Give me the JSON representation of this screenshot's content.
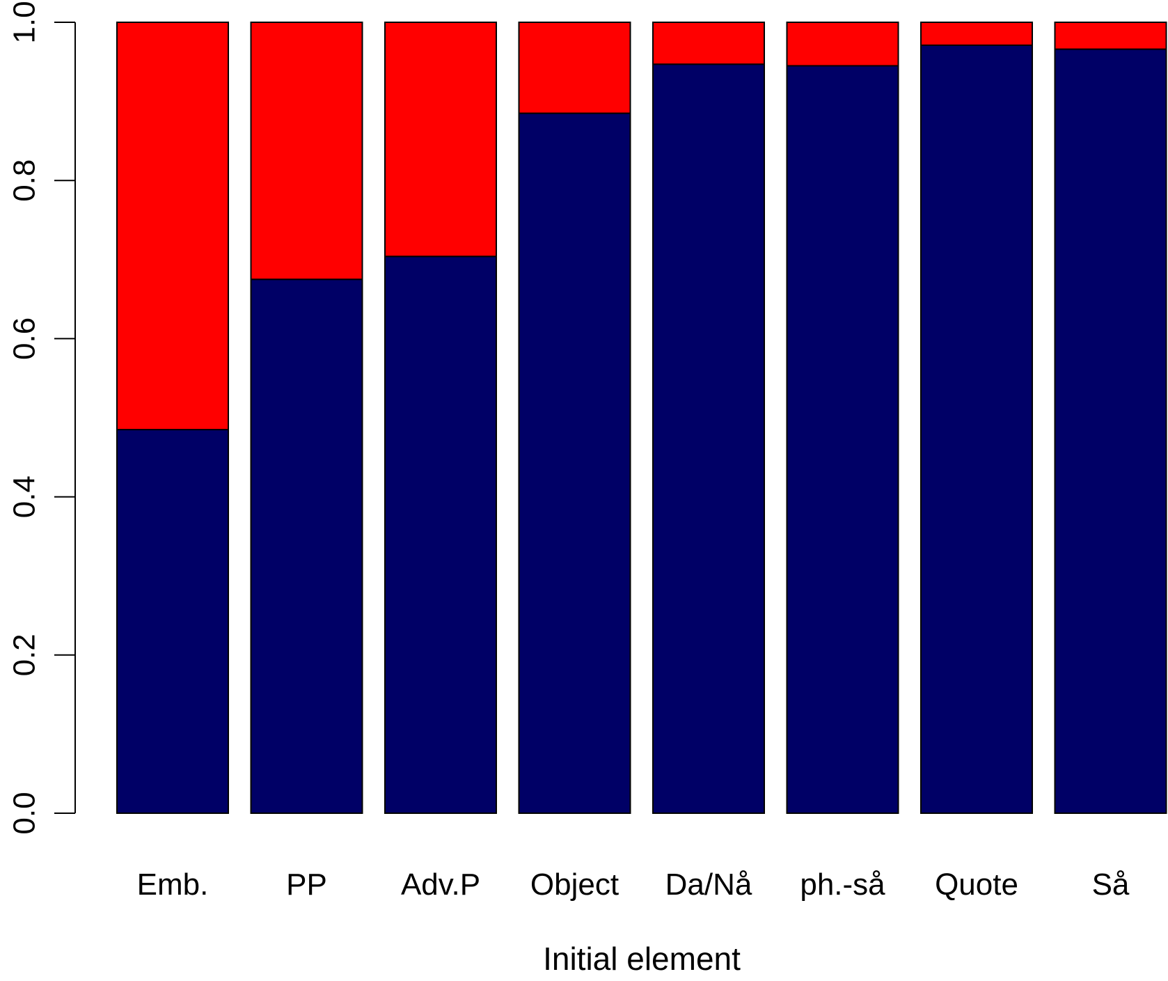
{
  "chart_data": {
    "type": "bar",
    "stacked": true,
    "xlabel": "Initial element",
    "ylabel": "",
    "ylim": [
      0,
      1
    ],
    "yticks": [
      "0.0",
      "0.2",
      "0.4",
      "0.6",
      "0.8",
      "1.0"
    ],
    "categories": [
      "Emb.",
      "PP",
      "Adv.P",
      "Object",
      "Da/Nå",
      "ph.-så",
      "Quote",
      "Så"
    ],
    "series": [
      {
        "values": [
          0.485,
          0.675,
          0.704,
          0.885,
          0.947,
          0.945,
          0.971,
          0.966
        ],
        "color": "#000066"
      },
      {
        "values": [
          0.515,
          0.325,
          0.296,
          0.115,
          0.053,
          0.055,
          0.029,
          0.034
        ],
        "color": "#ff0000"
      }
    ],
    "grid": false,
    "legend": "none"
  }
}
